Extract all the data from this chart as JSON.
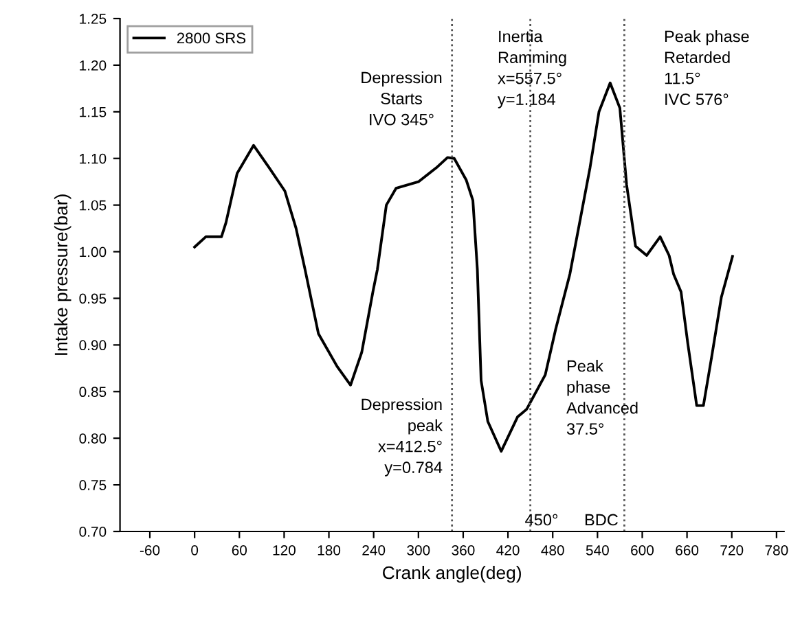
{
  "chart_data": {
    "type": "line",
    "xlabel": "Crank angle(deg)",
    "ylabel": "Intake pressure(bar)",
    "xlim": [
      -100,
      790
    ],
    "xticks": [
      -60,
      0,
      60,
      120,
      180,
      240,
      300,
      360,
      420,
      480,
      540,
      600,
      660,
      720,
      780
    ],
    "ylim": [
      0.7,
      1.25
    ],
    "yticks": [
      {
        "value": 0.7,
        "label": "0.70"
      },
      {
        "value": 0.75,
        "label": "0.75"
      },
      {
        "value": 0.8,
        "label": "0.80"
      },
      {
        "value": 0.85,
        "label": "0.85"
      },
      {
        "value": 0.9,
        "label": "0.90"
      },
      {
        "value": 0.95,
        "label": "0.95"
      },
      {
        "value": 1.0,
        "label": "1.00"
      },
      {
        "value": 1.05,
        "label": "1.05"
      },
      {
        "value": 1.1,
        "label": "1.10"
      },
      {
        "value": 1.15,
        "label": "1.15"
      },
      {
        "value": 1.2,
        "label": "1.20"
      },
      {
        "value": 1.25,
        "label": "1.25"
      }
    ],
    "grid": false,
    "legend": "top left",
    "marker": "none",
    "line_style": "solid",
    "series": [
      {
        "name": "2800 SRS",
        "color": "#000000",
        "x": [
          0,
          15,
          36,
          42,
          57,
          79,
          100,
          121,
          136,
          148,
          166,
          191,
          209,
          224,
          239,
          245,
          257,
          270,
          300,
          324,
          339,
          348,
          364,
          373,
          379,
          384,
          393,
          411,
          433,
          445,
          470,
          484,
          503,
          530,
          542,
          557,
          570,
          579,
          591,
          606,
          624,
          636,
          642,
          652,
          661,
          673,
          682,
          693,
          706,
          721
        ],
        "values": [
          1.005,
          1.016,
          1.016,
          1.031,
          1.084,
          1.114,
          1.09,
          1.065,
          1.025,
          0.981,
          0.912,
          0.877,
          0.857,
          0.892,
          0.957,
          0.981,
          1.05,
          1.068,
          1.075,
          1.09,
          1.101,
          1.1,
          1.077,
          1.055,
          0.981,
          0.862,
          0.818,
          0.786,
          0.823,
          0.831,
          0.868,
          0.917,
          0.976,
          1.09,
          1.15,
          1.181,
          1.154,
          1.072,
          1.006,
          0.996,
          1.016,
          0.996,
          0.976,
          0.957,
          0.902,
          0.835,
          0.835,
          0.887,
          0.951,
          0.995
        ]
      }
    ],
    "ref_lines": [
      {
        "axis": "x",
        "value": 345,
        "color": "#555555",
        "line_style": "dotted"
      },
      {
        "axis": "x",
        "value": 576,
        "color": "#555555",
        "line_style": "dotted"
      },
      {
        "axis": "x",
        "value": 450,
        "color": "#555555",
        "line_style": "dotted"
      }
    ],
    "annotations": [
      "Depression\nStarts\nIVO 345°",
      "Inertia\nRamming\nx=557.5°\ny=1.184",
      "Peak phase\nRetarded\n11.5°\nIVC 576°",
      "Depression\npeak\nx=412.5°\ny=0.784",
      "Peak\nphase\nAdvanced\n37.5°",
      "450°",
      "BDC"
    ]
  }
}
